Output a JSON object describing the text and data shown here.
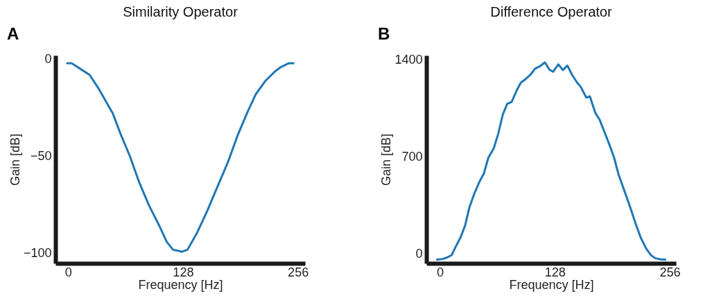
{
  "chart_data": [
    {
      "type": "line",
      "title": "Similarity Operator",
      "xlabel": "Frequency [Hz]",
      "ylabel": "Gain [dB]",
      "annotations": [
        "A"
      ],
      "grid": false,
      "marker": "none",
      "line_style": "solid",
      "xlim": [
        -14,
        264
      ],
      "ylim": [
        -105,
        2
      ],
      "xticks": [
        0,
        128,
        256
      ],
      "yticks": [
        0,
        -50,
        -100
      ],
      "x": [
        -2,
        4,
        14,
        24,
        34,
        50,
        59,
        69,
        79,
        90,
        102,
        110,
        117,
        127,
        133,
        144,
        155,
        166,
        178,
        189,
        200,
        209,
        220,
        231,
        237,
        246,
        252
      ],
      "series": [
        {
          "color": "#1f77b4",
          "values": [
            -2,
            -2,
            -5,
            -8,
            -15,
            -28,
            -39,
            -50,
            -63,
            -75,
            -86,
            -94,
            -98,
            -99,
            -98,
            -89,
            -78,
            -66,
            -53,
            -39,
            -27,
            -18,
            -11,
            -6,
            -4,
            -2,
            -2
          ]
        }
      ]
    },
    {
      "type": "line",
      "title": "Difference Operator",
      "xlabel": "Frequency [Hz]",
      "ylabel": "Gain [dB]",
      "annotations": [
        "B"
      ],
      "grid": false,
      "marker": "none",
      "line_style": "solid",
      "xlim": [
        -15,
        263
      ],
      "ylim": [
        -70,
        1435
      ],
      "xticks": [
        0,
        128,
        256
      ],
      "yticks": [
        0,
        700,
        1400
      ],
      "x": [
        -4,
        3,
        7,
        13,
        17,
        23,
        28,
        33,
        38,
        44,
        49,
        54,
        60,
        65,
        70,
        75,
        80,
        86,
        90,
        96,
        101,
        106,
        111,
        117,
        122,
        126,
        132,
        137,
        142,
        147,
        153,
        157,
        163,
        167,
        173,
        178,
        184,
        189,
        194,
        199,
        204,
        211,
        218,
        224,
        230,
        235,
        240,
        246,
        252
      ],
      "series": [
        {
          "color": "#1f77b4",
          "values": [
            -44,
            -38,
            -30,
            -11,
            42,
            118,
            202,
            338,
            429,
            520,
            581,
            695,
            763,
            869,
            1006,
            1085,
            1100,
            1188,
            1237,
            1267,
            1297,
            1339,
            1355,
            1385,
            1332,
            1317,
            1370,
            1329,
            1362,
            1297,
            1237,
            1206,
            1130,
            1139,
            1021,
            968,
            869,
            786,
            695,
            573,
            482,
            354,
            217,
            111,
            35,
            -11,
            -33,
            -41,
            -44
          ]
        }
      ]
    }
  ]
}
